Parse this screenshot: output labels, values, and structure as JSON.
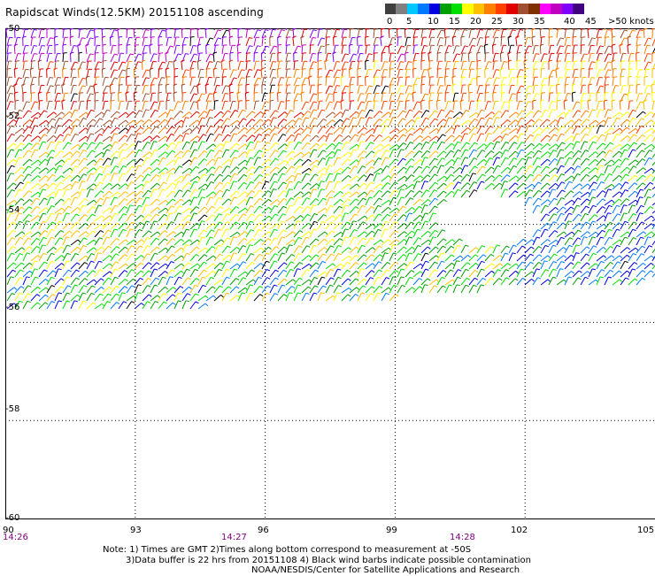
{
  "title": "Rapidscat Winds(12.5KM) 20151108 ascending",
  "legend": {
    "labels": [
      "0",
      "5",
      "10",
      "15",
      "20",
      "25",
      "30",
      "35",
      "40",
      "45",
      ">50 knots"
    ],
    "colors": [
      "#404040",
      "#808080",
      "#00c8ff",
      "#0078ff",
      "#0000e0",
      "#00a000",
      "#00e000",
      "#ffff00",
      "#ffc000",
      "#ff8000",
      "#ff4000",
      "#e00000",
      "#a05030",
      "#803000",
      "#ff00ff",
      "#c000c0",
      "#8000ff",
      "#400080"
    ]
  },
  "map": {
    "lat_labels": [
      "-50",
      "-52",
      "-54",
      "-56",
      "-58",
      "-60"
    ],
    "lon_labels": [
      "90",
      "93",
      "96",
      "99",
      "102",
      "105"
    ],
    "lat_range": [
      -60,
      -50
    ],
    "lon_range": [
      90,
      105
    ],
    "gridlines": true
  },
  "time_labels": [
    "14:26",
    "14:27",
    "14:28"
  ],
  "notes": [
    "Note: 1) Times are GMT 2)Times along bottom correspond to measurement at -50S",
    "3)Data buffer is 22 hrs from 20151108 4) Black wind barbs indicate possible contamination",
    "NOAA/NESDIS/Center for Satellite Applications and Research"
  ]
}
